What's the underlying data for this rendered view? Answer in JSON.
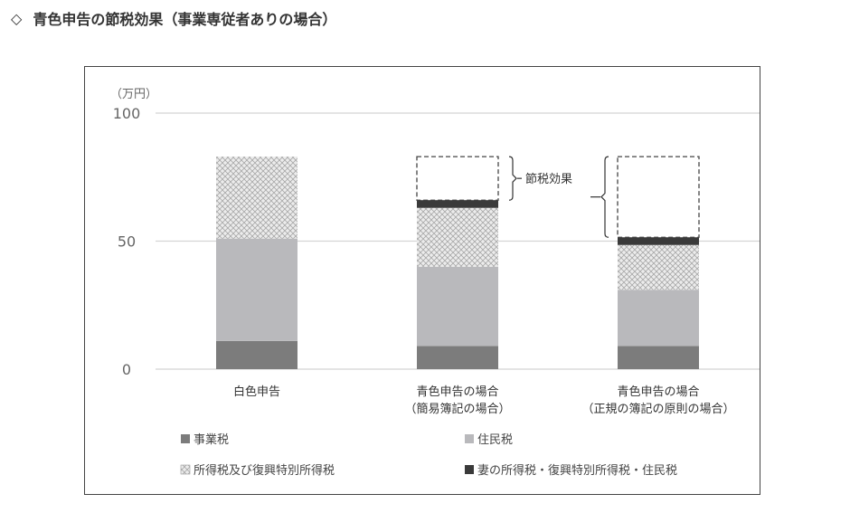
{
  "heading": {
    "marker": "◇",
    "title": "青色申告の節税効果（事業専従者ありの場合）"
  },
  "colors": {
    "business_tax": "#7c7c7c",
    "resident_tax": "#b9b9bc",
    "income_tax": "#e3e3e3",
    "spouse_tax": "#3a3a3a",
    "gridline": "#d4d4d4",
    "dashed_box": "#444444"
  },
  "chart_data": {
    "type": "bar",
    "stacked": true,
    "ylabel_unit": "（万円）",
    "ylim": [
      0,
      100
    ],
    "yticks": [
      0,
      50,
      100
    ],
    "categories": [
      {
        "lines": [
          "白色申告"
        ]
      },
      {
        "lines": [
          "青色申告の場合",
          "（簡易簿記の場合）"
        ]
      },
      {
        "lines": [
          "青色申告の場合",
          "（正規の簿記の原則の場合）"
        ]
      }
    ],
    "series": [
      {
        "key": "business_tax",
        "name": "事業税",
        "values": [
          11,
          9,
          9
        ],
        "pattern": "solid"
      },
      {
        "key": "resident_tax",
        "name": "住民税",
        "values": [
          40,
          31,
          22
        ],
        "pattern": "solid"
      },
      {
        "key": "income_tax",
        "name": "所得税及び復興特別所得税",
        "values": [
          32,
          23,
          17.5
        ],
        "pattern": "hatch"
      },
      {
        "key": "spouse_tax",
        "name": "妻の所得税・復興特別所得税・住民税",
        "values": [
          0,
          3,
          3
        ],
        "pattern": "solid"
      }
    ],
    "savings_reference_total": 83,
    "annotation": "節税効果",
    "grid": true,
    "legend_position": "bottom"
  }
}
